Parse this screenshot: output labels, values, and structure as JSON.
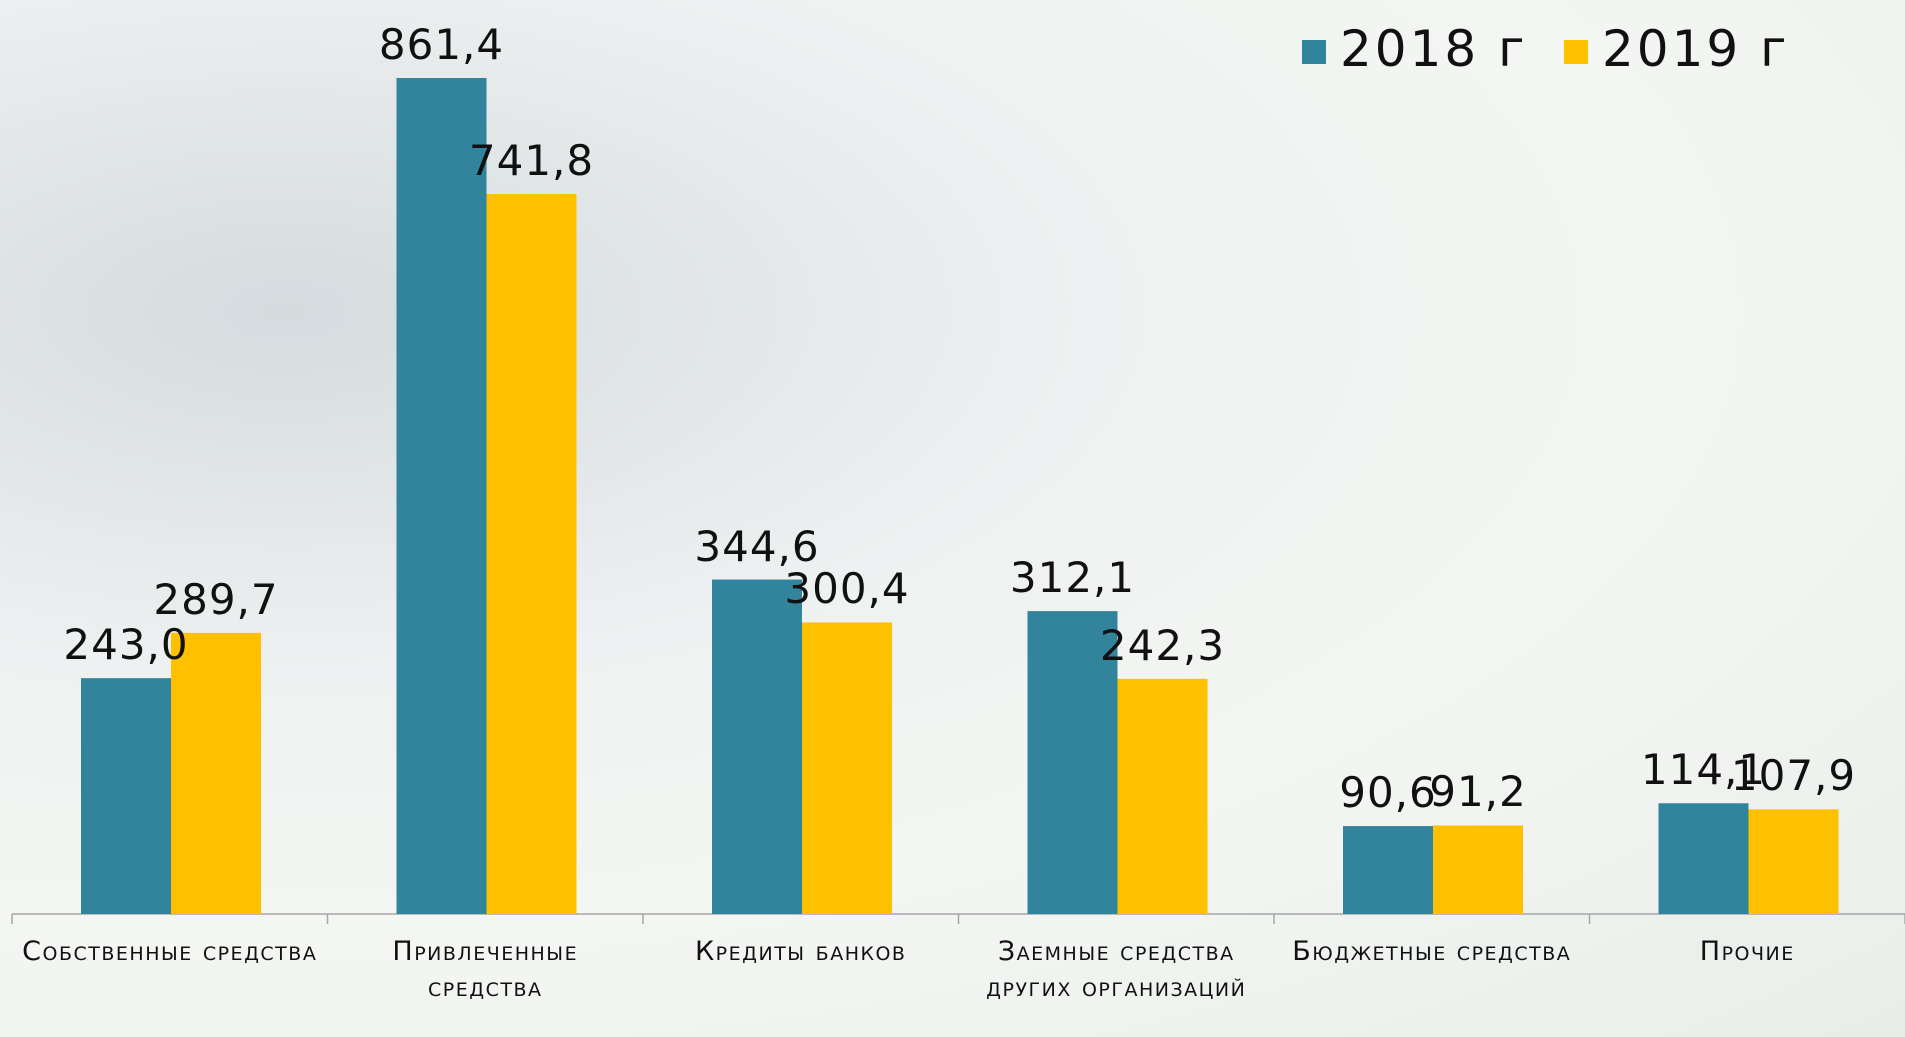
{
  "chart_data": {
    "type": "bar",
    "categories": [
      "Собственные средства",
      "Привлеченные средства",
      "Кредиты банков",
      "Заемные средства других организаций",
      "Бюджетные средства",
      "Прочие"
    ],
    "series": [
      {
        "name": "2018 г",
        "color": "#31849b",
        "values": [
          243.0,
          861.4,
          344.6,
          312.1,
          90.6,
          114.1
        ],
        "value_labels": [
          "243,0",
          "861,4",
          "344,6",
          "312,1",
          "90,6",
          "114,1"
        ]
      },
      {
        "name": "2019 г",
        "color": "#ffc000",
        "values": [
          289.7,
          741.8,
          300.4,
          242.3,
          91.2,
          107.9
        ],
        "value_labels": [
          "289,7",
          "741,8",
          "300,4",
          "242,3",
          "91,2",
          "107,9"
        ]
      }
    ],
    "legend": "top-right"
  }
}
